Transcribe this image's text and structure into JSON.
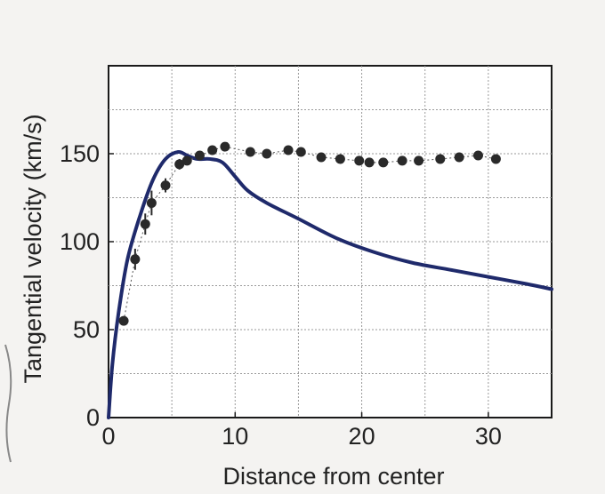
{
  "chart_data": {
    "type": "line",
    "title": "",
    "xlabel": "Distance from center",
    "ylabel": "Tangential velocity (km/s)",
    "xlim": [
      0,
      35
    ],
    "ylim": [
      0,
      200
    ],
    "x_ticks": [
      0,
      10,
      20,
      30
    ],
    "x_tick_labels": [
      "0",
      "10",
      "20",
      "30"
    ],
    "y_ticks": [
      0,
      50,
      100,
      150
    ],
    "y_tick_labels": [
      "0",
      "50",
      "100",
      "150"
    ],
    "grid": true,
    "grid_x": [
      0,
      5,
      10,
      15,
      20,
      25,
      30,
      35
    ],
    "grid_y": [
      0,
      25,
      50,
      75,
      100,
      125,
      150,
      175,
      200
    ],
    "legend": "none",
    "series": [
      {
        "kind": "line",
        "color": "#1f2a6b",
        "x": [
          0,
          0.3,
          0.8,
          1.5,
          2.5,
          3.5,
          4.5,
          5.5,
          6.2,
          7,
          8,
          9,
          10,
          11,
          12.5,
          15,
          18,
          21,
          24,
          27,
          30,
          33,
          35
        ],
        "y": [
          0,
          30,
          60,
          90,
          115,
          135,
          147,
          151,
          149,
          147,
          147,
          145,
          137,
          129,
          122,
          113,
          102,
          94,
          88,
          84,
          80,
          76,
          73
        ]
      },
      {
        "kind": "scatter",
        "color": "#2a2a2a",
        "x": [
          1.2,
          2.1,
          2.9,
          3.4,
          4.5,
          5.6,
          6.2,
          7.2,
          8.2,
          9.2,
          11.2,
          12.5,
          14.2,
          15.2,
          16.8,
          18.3,
          19.8,
          20.6,
          21.7,
          23.2,
          24.5,
          26.2,
          27.7,
          29.2,
          30.6
        ],
        "y": [
          55,
          90,
          110,
          122,
          132,
          144,
          146,
          149,
          152,
          154,
          151,
          150,
          152,
          151,
          148,
          147,
          146,
          145,
          145,
          146,
          146,
          147,
          148,
          149,
          147
        ],
        "error": [
          0,
          6,
          6,
          7,
          4,
          3,
          0,
          0,
          0,
          0,
          0,
          0,
          0,
          0,
          0,
          0,
          0,
          0,
          0,
          0,
          0,
          0,
          0,
          0,
          0
        ]
      }
    ]
  }
}
